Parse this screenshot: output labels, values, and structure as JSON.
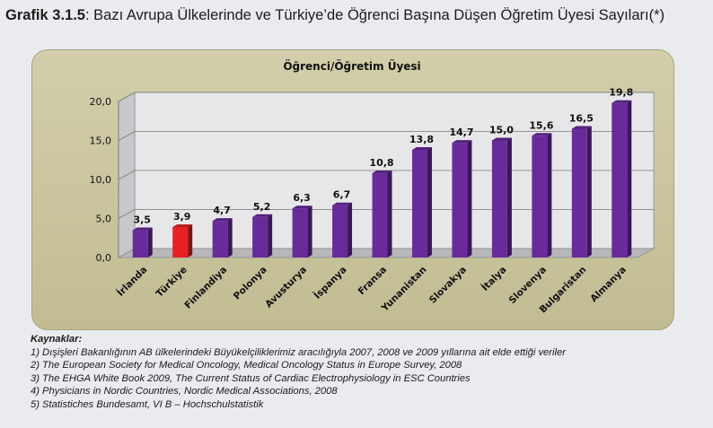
{
  "heading": {
    "label": "Grafik 3.1.5",
    "text": ": Bazı Avrupa Ülkelerinde ve Türkiye’de Öğrenci Başına Düşen Öğretim Üyesi Sayıları(*)"
  },
  "chart_data": {
    "type": "bar",
    "title": "Öğrenci/Öğretim Üyesi",
    "categories": [
      "İrlanda",
      "Türkiye",
      "Finlandiya",
      "Polonya",
      "Avusturya",
      "İspanya",
      "Fransa",
      "Yunanistan",
      "Slovakya",
      "İtalya",
      "Slovenya",
      "Bulgaristan",
      "Almanya"
    ],
    "values": [
      3.5,
      3.9,
      4.7,
      5.2,
      6.3,
      6.7,
      10.8,
      13.8,
      14.7,
      15.0,
      15.6,
      16.5,
      19.8
    ],
    "value_labels": [
      "3,5",
      "3,9",
      "4,7",
      "5,2",
      "6,3",
      "6,7",
      "10,8",
      "13,8",
      "14,7",
      "15,0",
      "15,6",
      "16,5",
      "19,8"
    ],
    "y_ticks": [
      "0,0",
      "5,0",
      "10,0",
      "15,0",
      "20,0"
    ],
    "ylim": [
      0,
      20
    ],
    "grid": true,
    "colors": {
      "default": "#6a2b9a",
      "highlight": "#e62222"
    },
    "highlight_category": "Türkiye",
    "legend": "none"
  },
  "sources": {
    "title": "Kaynaklar:",
    "items": [
      "1) Dışişleri Bakanlığının AB ülkelerindeki Büyükelçiliklerimiz aracılığıyla 2007, 2008 ve 2009 yıllarına ait elde ettiği veriler",
      "2) The European Society for Medical Oncology, Medical Oncology Status in Europe Survey, 2008",
      "3) The EHGA White Book 2009, The Current Status of Cardiac Electrophysiology in ESC Countries",
      "4) Physicians in Nordic Countries, Nordic Medical Associations, 2008",
      "5) Statistiches Bundesamt, VI B – Hochschulstatistik"
    ]
  }
}
